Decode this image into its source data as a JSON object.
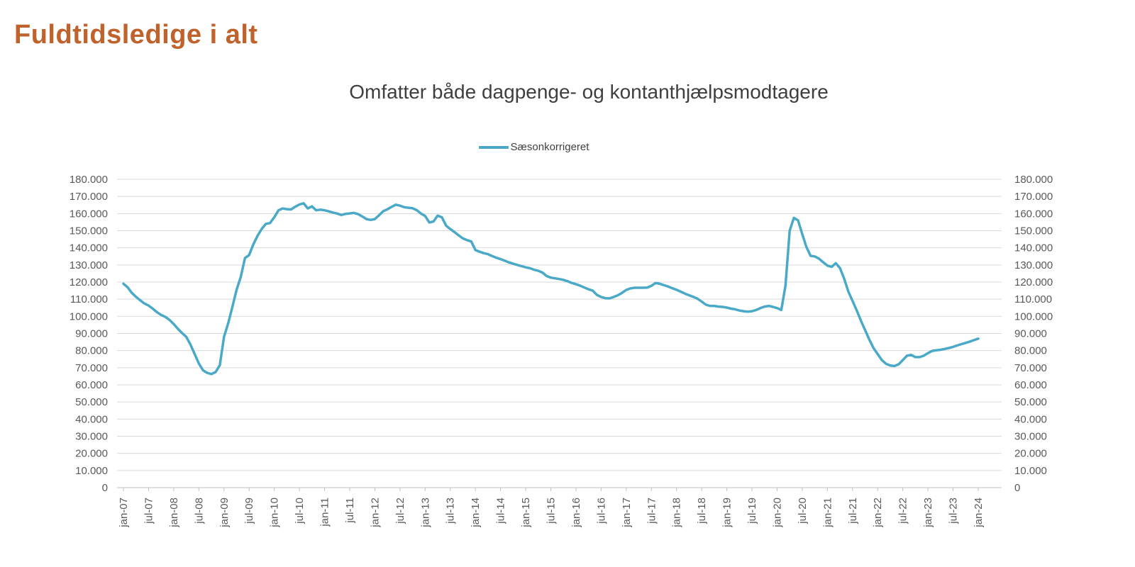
{
  "header": {
    "title": "Fuldtidsledige i alt",
    "title_color": "#C0622C"
  },
  "chart": {
    "subtitle": "Omfatter både dagpenge- og kontanthjælpsmodtagere",
    "legend": "Sæsonkorrigeret",
    "series_color": "#4AA9C6",
    "gridline_color": "#D9D9D9",
    "axis_line_color": "#BFBFBF",
    "axis_text_color": "#595959"
  },
  "chart_data": {
    "type": "line",
    "title": "Omfatter både dagpenge- og kontanthjælpsmodtagere",
    "xlabel": "",
    "ylabel": "",
    "ylim": [
      0,
      180000
    ],
    "y_tick_step": 10000,
    "y_tick_labels": [
      "0",
      "10.000",
      "20.000",
      "30.000",
      "40.000",
      "50.000",
      "60.000",
      "70.000",
      "80.000",
      "90.000",
      "100.000",
      "110.000",
      "120.000",
      "130.000",
      "140.000",
      "150.000",
      "160.000",
      "170.000",
      "180.000"
    ],
    "grid": true,
    "legend_position": "top-center",
    "x_unit": "month",
    "x_start": "jan-07",
    "x_end": "jan-24",
    "x_tick_every_months": 6,
    "x_tick_labels": [
      "jan-07",
      "jul-07",
      "jan-08",
      "jul-08",
      "jan-09",
      "jul-09",
      "jan-10",
      "jul-10",
      "jan-11",
      "jul-11",
      "jan-12",
      "jul-12",
      "jan-13",
      "jul-13",
      "jan-14",
      "jul-14",
      "jan-15",
      "jul-15",
      "jan-16",
      "jul-16",
      "jan-17",
      "jul-17",
      "jan-18",
      "jul-18",
      "jan-19",
      "jul-19",
      "jan-20",
      "jul-20",
      "jan-21",
      "jul-21",
      "jan-22",
      "jul-22",
      "jan-23",
      "jul-23",
      "jan-24"
    ],
    "series": [
      {
        "name": "Sæsonkorrigeret",
        "color": "#4AA9C6",
        "values": [
          119000,
          117000,
          113700,
          111400,
          109400,
          107500,
          106300,
          104500,
          102400,
          100800,
          99700,
          97900,
          95500,
          92700,
          90200,
          88000,
          83500,
          78000,
          72500,
          68500,
          67000,
          66300,
          67500,
          71500,
          88000,
          96000,
          105500,
          115500,
          123000,
          134000,
          135800,
          142000,
          147000,
          151000,
          154000,
          154500,
          157800,
          161900,
          163000,
          162600,
          162400,
          164000,
          165300,
          166000,
          163000,
          164200,
          161900,
          162300,
          161900,
          161300,
          160600,
          160000,
          159200,
          159800,
          160100,
          160400,
          159700,
          158300,
          156800,
          156300,
          156800,
          159000,
          161400,
          162500,
          163900,
          165200,
          164600,
          163700,
          163400,
          163100,
          162000,
          160000,
          158600,
          154800,
          155400,
          158800,
          157800,
          153000,
          151000,
          149200,
          147300,
          145500,
          144500,
          143700,
          138700,
          137700,
          136900,
          136300,
          135200,
          134200,
          133400,
          132500,
          131500,
          130700,
          130000,
          129300,
          128600,
          128100,
          127200,
          126600,
          125600,
          123500,
          122600,
          122200,
          121800,
          121300,
          120500,
          119500,
          118800,
          117900,
          116800,
          115800,
          115000,
          112500,
          111300,
          110600,
          110500,
          111300,
          112300,
          113700,
          115400,
          116300,
          116700,
          116700,
          116700,
          116800,
          117800,
          119500,
          119000,
          118200,
          117400,
          116400,
          115500,
          114400,
          113300,
          112300,
          111400,
          110300,
          108600,
          106800,
          106100,
          106100,
          105700,
          105500,
          105100,
          104500,
          104100,
          103400,
          103000,
          102700,
          103000,
          103700,
          104800,
          105700,
          106100,
          105500,
          104800,
          103700,
          118000,
          150000,
          157500,
          156000,
          148000,
          140500,
          135300,
          135000,
          133700,
          131600,
          129600,
          128900,
          131000,
          128200,
          122000,
          114500,
          109000,
          103500,
          97500,
          92000,
          86500,
          81500,
          78000,
          74500,
          72300,
          71300,
          71000,
          72000,
          74500,
          77000,
          77500,
          76200,
          76200,
          77000,
          78500,
          79800,
          80200,
          80500,
          81000,
          81500,
          82200,
          83000,
          83800,
          84500,
          85300,
          86100,
          87000
        ]
      }
    ]
  }
}
